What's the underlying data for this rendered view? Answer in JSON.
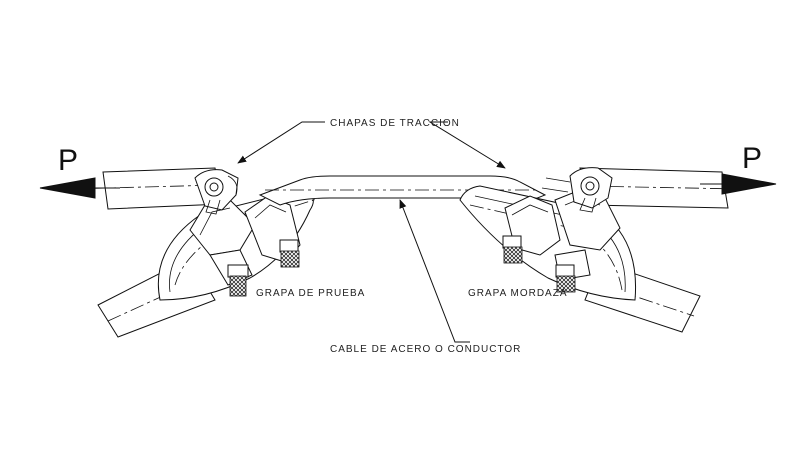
{
  "labels": {
    "chapas": "CHAPAS DE TRACCION",
    "cable": "CABLE DE ACERO O CONDUCTOR",
    "grapa_prueba": "GRAPA DE PRUEBA",
    "grapa_mordaza": "GRAPA MORDAZA",
    "force_left": "P",
    "force_right": "P"
  }
}
